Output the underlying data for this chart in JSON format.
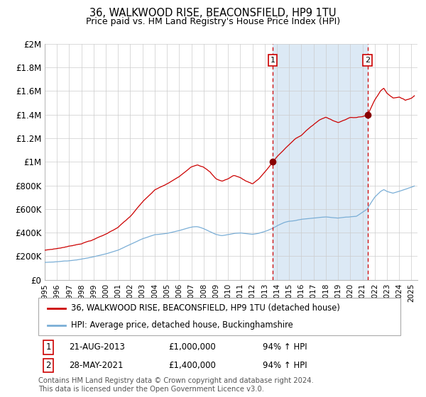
{
  "title": "36, WALKWOOD RISE, BEACONSFIELD, HP9 1TU",
  "subtitle": "Price paid vs. HM Land Registry's House Price Index (HPI)",
  "ylim": [
    0,
    2000000
  ],
  "yticks": [
    0,
    200000,
    400000,
    600000,
    800000,
    1000000,
    1200000,
    1400000,
    1600000,
    1800000,
    2000000
  ],
  "ytick_labels": [
    "£0",
    "£200K",
    "£400K",
    "£600K",
    "£800K",
    "£1M",
    "£1.2M",
    "£1.4M",
    "£1.6M",
    "£1.8M",
    "£2M"
  ],
  "xlim_start": 1995.0,
  "xlim_end": 2025.5,
  "grid_color": "#cccccc",
  "shaded_region_color": "#dce9f5",
  "red_line_color": "#cc0000",
  "blue_line_color": "#7aaed6",
  "dashed_line_color": "#cc0000",
  "marker_color": "#880000",
  "purchase1_date": 2013.64,
  "purchase1_price": 1000000,
  "purchase2_date": 2021.41,
  "purchase2_price": 1400000,
  "legend_house_label": "36, WALKWOOD RISE, BEACONSFIELD, HP9 1TU (detached house)",
  "legend_hpi_label": "HPI: Average price, detached house, Buckinghamshire",
  "annotation1_label": "1",
  "annotation2_label": "2",
  "annotation1_text": "21-AUG-2013",
  "annotation1_price": "£1,000,000",
  "annotation1_hpi": "94% ↑ HPI",
  "annotation2_text": "28-MAY-2021",
  "annotation2_price": "£1,400,000",
  "annotation2_hpi": "94% ↑ HPI",
  "footer": "Contains HM Land Registry data © Crown copyright and database right 2024.\nThis data is licensed under the Open Government Licence v3.0."
}
